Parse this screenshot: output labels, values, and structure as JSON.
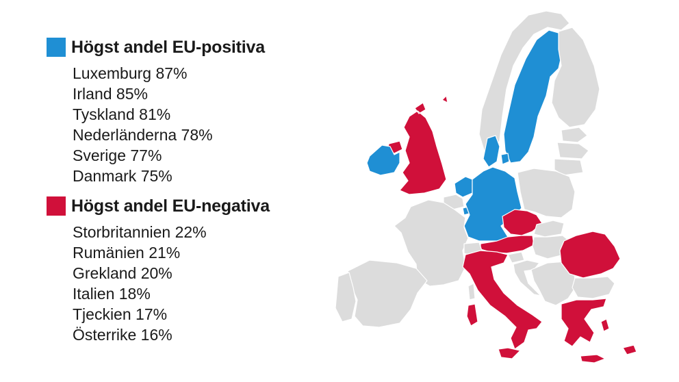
{
  "colors": {
    "positive": "#1f8fd4",
    "negative": "#d0103a",
    "neutral": "#dcdcdc"
  },
  "legend": {
    "positive": {
      "title": "Högst andel EU-positiva",
      "entries": [
        "Luxemburg 87%",
        "Irland 85%",
        "Tyskland 81%",
        "Nederländerna 78%",
        "Sverige 77%",
        "Danmark 75%"
      ]
    },
    "negative": {
      "title": "Högst andel EU-negativa",
      "entries": [
        "Storbritannien 22%",
        "Rumänien 21%",
        "Grekland 20%",
        "Italien 18%",
        "Tjeckien 17%",
        "Österrike 16%"
      ]
    }
  },
  "map": {
    "highlighted_positive": [
      "Luxemburg",
      "Irland",
      "Tyskland",
      "Nederländerna",
      "Sverige",
      "Danmark"
    ],
    "highlighted_negative": [
      "Storbritannien",
      "Rumänien",
      "Grekland",
      "Italien",
      "Tjeckien",
      "Österrike"
    ]
  }
}
